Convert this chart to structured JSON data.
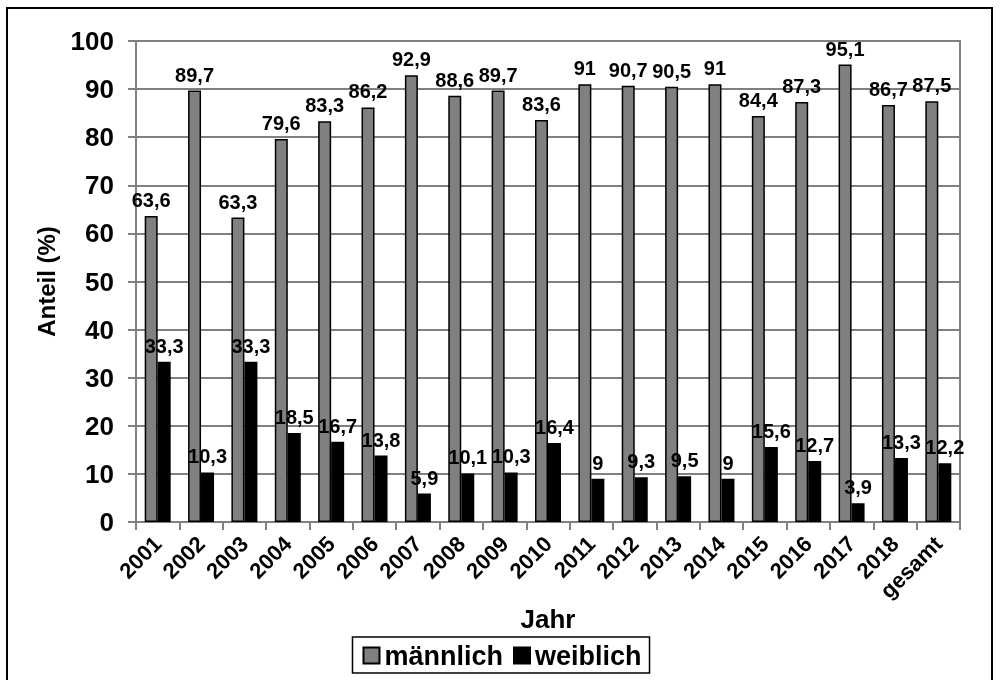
{
  "chart_data": {
    "type": "bar",
    "categories": [
      "2001",
      "2002",
      "2003",
      "2004",
      "2005",
      "2006",
      "2007",
      "2008",
      "2009",
      "2010",
      "2011",
      "2012",
      "2013",
      "2014",
      "2015",
      "2016",
      "2017",
      "2018",
      "gesamt"
    ],
    "series": [
      {
        "name": "männlich",
        "color": "#808080",
        "values": [
          63.6,
          89.7,
          63.3,
          79.6,
          83.3,
          86.2,
          92.9,
          88.6,
          89.7,
          83.6,
          91,
          90.7,
          90.5,
          91,
          84.4,
          87.3,
          95.1,
          86.7,
          87.5
        ],
        "value_labels": [
          "63,6",
          "89,7",
          "63,3",
          "79,6",
          "83,3",
          "86,2",
          "92,9",
          "88,6",
          "89,7",
          "83,6",
          "91",
          "90,7",
          "90,5",
          "91",
          "84,4",
          "87,3",
          "95,1",
          "86,7",
          "87,5"
        ]
      },
      {
        "name": "weiblich",
        "color": "#000000",
        "values": [
          33.3,
          10.3,
          33.3,
          18.5,
          16.7,
          13.8,
          5.9,
          10.1,
          10.3,
          16.4,
          9,
          9.3,
          9.5,
          9,
          15.6,
          12.7,
          3.9,
          13.3,
          12.2
        ],
        "value_labels": [
          "33,3",
          "10,3",
          "33,3",
          "18,5",
          "16,7",
          "13,8",
          "5,9",
          "10,1",
          "10,3",
          "16,4",
          "9",
          "9,3",
          "9,5",
          "9",
          "15,6",
          "12,7",
          "3,9",
          "13,3",
          "12,2"
        ]
      }
    ],
    "xlabel": "Jahr",
    "ylabel": "Anteil (%)",
    "ylim": [
      0,
      100
    ],
    "yticks": [
      0,
      10,
      20,
      30,
      40,
      50,
      60,
      70,
      80,
      90,
      100
    ],
    "grid": "y",
    "legend": "bottom"
  }
}
